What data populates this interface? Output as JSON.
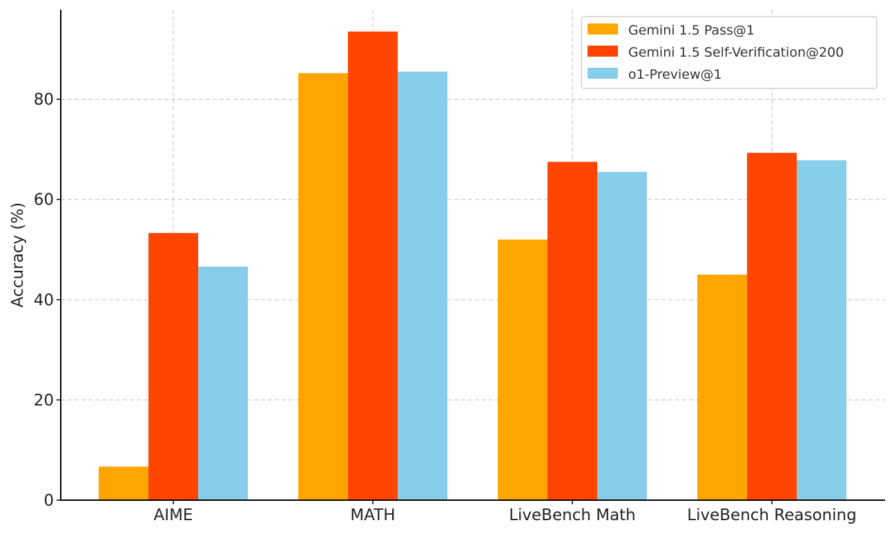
{
  "chart_data": {
    "type": "bar",
    "title": "",
    "xlabel": "",
    "ylabel": "Accuracy (%)",
    "ylim": [
      0,
      98
    ],
    "yticks": [
      0,
      20,
      40,
      60,
      80
    ],
    "grid": true,
    "legend_position": "top-right",
    "categories": [
      "AIME",
      "MATH",
      "LiveBench Math",
      "LiveBench Reasoning"
    ],
    "series": [
      {
        "name": "Gemini 1.5 Pass@1",
        "color": "#FFA500",
        "values": [
          6.7,
          85.2,
          52.0,
          45.0
        ]
      },
      {
        "name": "Gemini 1.5 Self-Verification@200",
        "color": "#FF4500",
        "values": [
          53.3,
          93.5,
          67.5,
          69.3
        ]
      },
      {
        "name": "o1-Preview@1",
        "color": "#87CEEB",
        "values": [
          46.6,
          85.5,
          65.5,
          67.8
        ]
      }
    ]
  }
}
